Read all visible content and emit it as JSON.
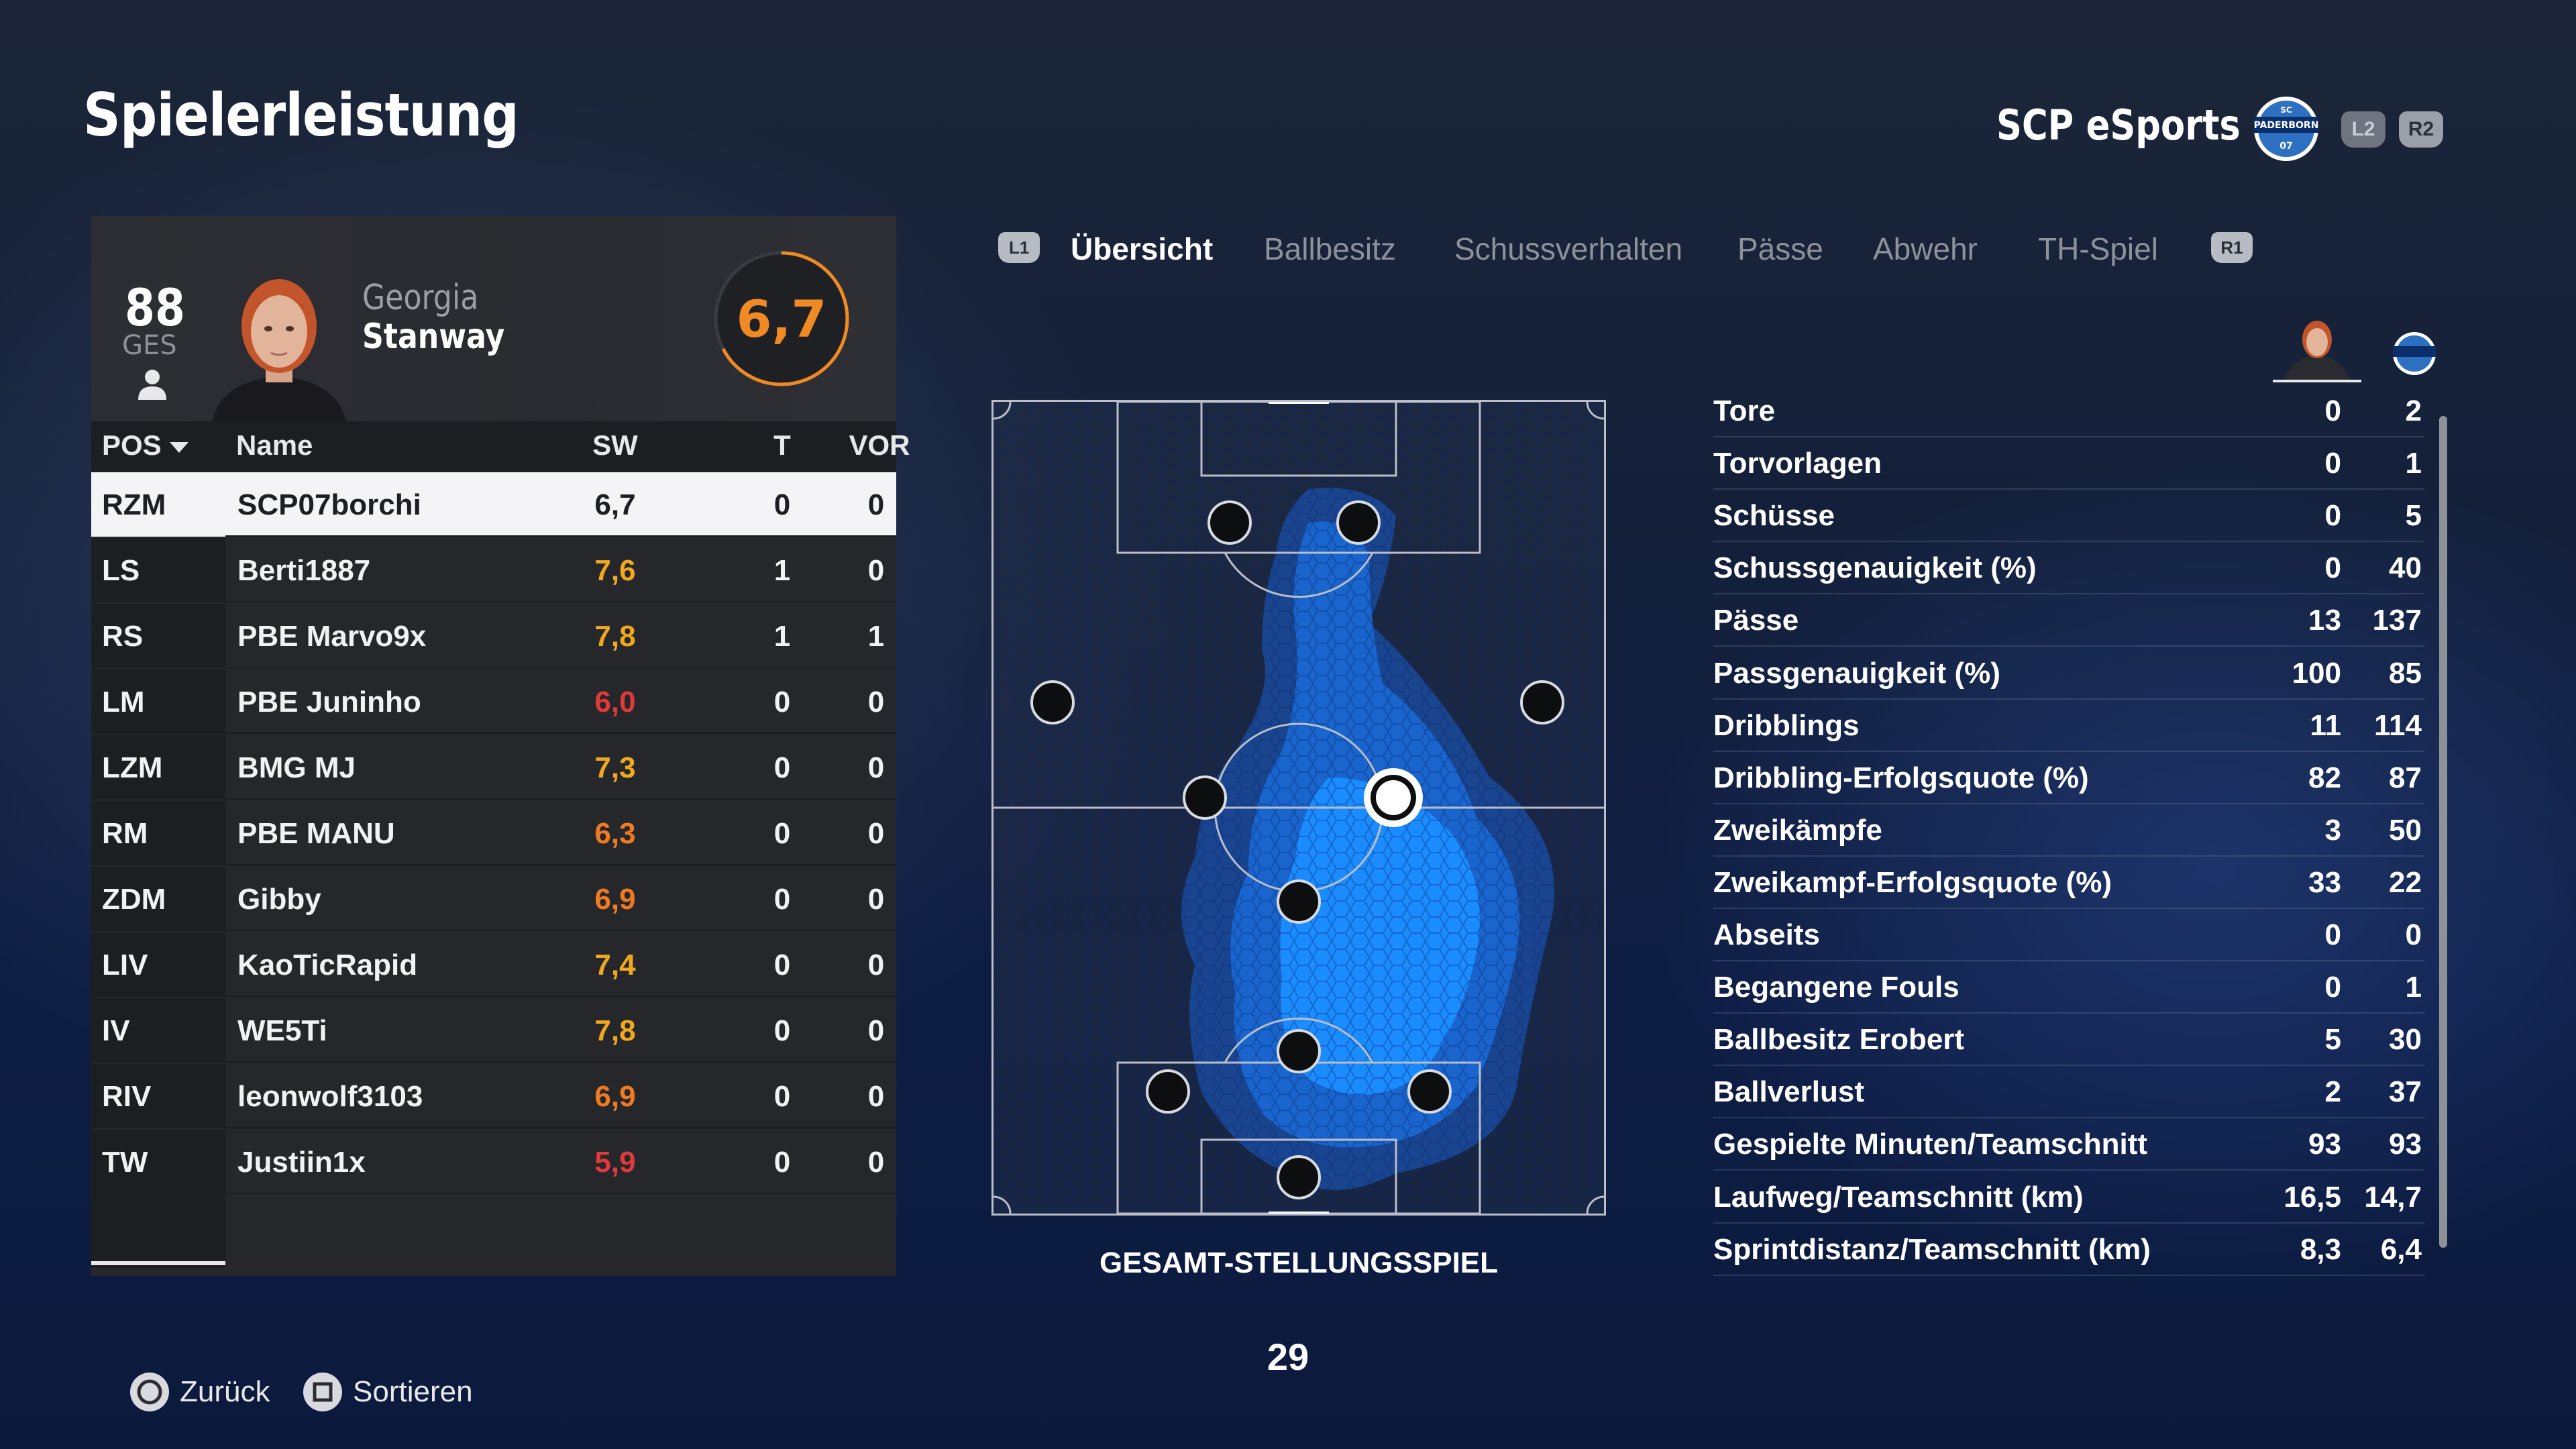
{
  "header": {
    "title": "Spielerleistung",
    "team_name": "SCP eSports",
    "l2": "L2",
    "r2": "R2"
  },
  "card": {
    "ges_value": "88",
    "ges_label": "GES",
    "first_name": "Georgia",
    "last_name": "Stanway",
    "rating": "6,7"
  },
  "table": {
    "headers": {
      "pos": "POS",
      "name": "Name",
      "sw": "SW",
      "t": "T",
      "vor": "VOR"
    },
    "rows": [
      {
        "pos": "RZM",
        "name": "SCP07borchi",
        "sw": "6,7",
        "t": "0",
        "vor": "0",
        "sw_color": "#1e1f24"
      },
      {
        "pos": "LS",
        "name": "Berti1887",
        "sw": "7,6",
        "t": "1",
        "vor": "0",
        "sw_color": "#f0a81e"
      },
      {
        "pos": "RS",
        "name": "PBE Marvo9x",
        "sw": "7,8",
        "t": "1",
        "vor": "1",
        "sw_color": "#f0a81e"
      },
      {
        "pos": "LM",
        "name": "PBE Juninho",
        "sw": "6,0",
        "t": "0",
        "vor": "0",
        "sw_color": "#e03a3a"
      },
      {
        "pos": "LZM",
        "name": "BMG MJ",
        "sw": "7,3",
        "t": "0",
        "vor": "0",
        "sw_color": "#f0a81e"
      },
      {
        "pos": "RM",
        "name": "PBE MANU",
        "sw": "6,3",
        "t": "0",
        "vor": "0",
        "sw_color": "#f07a22"
      },
      {
        "pos": "ZDM",
        "name": "Gibby",
        "sw": "6,9",
        "t": "0",
        "vor": "0",
        "sw_color": "#f07a22"
      },
      {
        "pos": "LIV",
        "name": "KaoTicRapid",
        "sw": "7,4",
        "t": "0",
        "vor": "0",
        "sw_color": "#f0a81e"
      },
      {
        "pos": "IV",
        "name": "WE5Ti",
        "sw": "7,8",
        "t": "0",
        "vor": "0",
        "sw_color": "#f0a81e"
      },
      {
        "pos": "RIV",
        "name": "leonwolf3103",
        "sw": "6,9",
        "t": "0",
        "vor": "0",
        "sw_color": "#f07a22"
      },
      {
        "pos": "TW",
        "name": "Justiin1x",
        "sw": "5,9",
        "t": "0",
        "vor": "0",
        "sw_color": "#e03a3a"
      }
    ]
  },
  "tabs": {
    "l1": "L1",
    "r1": "R1",
    "items": [
      "Übersicht",
      "Ballbesitz",
      "Schussverhalten",
      "Pässe",
      "Abwehr",
      "TH-Spiel"
    ],
    "active_index": 0
  },
  "pitch": {
    "label": "GESAMT-STELLUNGSSPIEL"
  },
  "stats": [
    {
      "label": "Tore",
      "player": "0",
      "team": "2"
    },
    {
      "label": "Torvorlagen",
      "player": "0",
      "team": "1"
    },
    {
      "label": "Schüsse",
      "player": "0",
      "team": "5"
    },
    {
      "label": "Schussgenauigkeit (%)",
      "player": "0",
      "team": "40"
    },
    {
      "label": "Pässe",
      "player": "13",
      "team": "137"
    },
    {
      "label": "Passgenauigkeit (%)",
      "player": "100",
      "team": "85"
    },
    {
      "label": "Dribblings",
      "player": "11",
      "team": "114"
    },
    {
      "label": "Dribbling-Erfolgsquote (%)",
      "player": "82",
      "team": "87"
    },
    {
      "label": "Zweikämpfe",
      "player": "3",
      "team": "50"
    },
    {
      "label": "Zweikampf-Erfolgsquote (%)",
      "player": "33",
      "team": "22"
    },
    {
      "label": "Abseits",
      "player": "0",
      "team": "0"
    },
    {
      "label": "Begangene Fouls",
      "player": "0",
      "team": "1"
    },
    {
      "label": "Ballbesitz Erobert",
      "player": "5",
      "team": "30"
    },
    {
      "label": "Ballverlust",
      "player": "2",
      "team": "37"
    },
    {
      "label": "Gespielte Minuten/Teamschnitt",
      "player": "93",
      "team": "93"
    },
    {
      "label": "Laufweg/Teamschnitt (km)",
      "player": "16,5",
      "team": "14,7"
    },
    {
      "label": "Sprintdistanz/Teamschnitt (km)",
      "player": "8,3",
      "team": "6,4"
    }
  ],
  "footer": {
    "page_number": "29",
    "back_label": "Zurück",
    "sort_label": "Sortieren"
  },
  "colors": {
    "rating_ring": "#f08a24",
    "heatmap": "#1e8fff"
  },
  "icons": {
    "back": "circle-button-icon",
    "sort": "square-button-icon",
    "person": "person-icon",
    "crest": "scp-crest-icon"
  }
}
